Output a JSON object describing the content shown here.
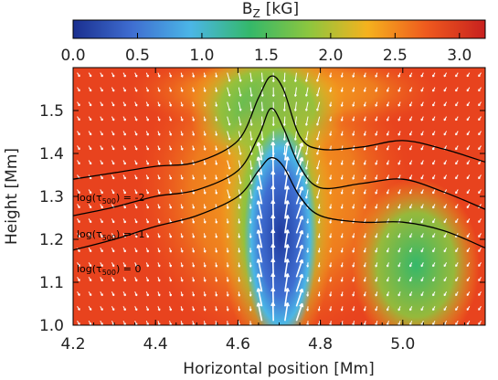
{
  "chart_data": {
    "type": "heatmap",
    "title": "B",
    "title_sub": "Z",
    "title_unit": "[kG]",
    "xlabel": "Horizontal position [Mm]",
    "ylabel": "Height [Mm]",
    "xlim": [
      4.2,
      5.2
    ],
    "ylim": [
      1.0,
      1.6
    ],
    "xticks": [
      4.2,
      4.4,
      4.6,
      4.8,
      5.0
    ],
    "xtick_labels": [
      "4.2",
      "4.4",
      "4.6",
      "4.8",
      "5.0"
    ],
    "yticks": [
      1.0,
      1.1,
      1.2,
      1.3,
      1.4,
      1.5
    ],
    "ytick_labels": [
      "1.0",
      "1.1",
      "1.2",
      "1.3",
      "1.4",
      "1.5"
    ],
    "colorbar": {
      "range": [
        0.0,
        3.2
      ],
      "ticks": [
        0.0,
        0.5,
        1.0,
        1.5,
        2.0,
        2.5,
        3.0
      ],
      "tick_labels": [
        "0.0",
        "0.5",
        "1.0",
        "1.5",
        "2.0",
        "2.5",
        "3.0"
      ],
      "colors": [
        "#1a2f8f",
        "#3f6ed1",
        "#4bb6e6",
        "#34b86a",
        "#8cc63f",
        "#f5b21e",
        "#ef5a1e",
        "#c8211f"
      ]
    },
    "field_features": [
      {
        "name": "low-field flux sheet",
        "x_center": 4.69,
        "y_range": [
          1.0,
          1.39
        ],
        "bz_min": 0.0
      },
      {
        "name": "background",
        "bz": 3.0
      },
      {
        "name": "weak patch",
        "x_center": 5.0,
        "y_center": 1.15,
        "bz": 1.8
      }
    ],
    "contours": [
      {
        "label": "log(τ500) = -2",
        "label_text": "log(τ",
        "label_sub": "500",
        "label_tail": ") = -2",
        "x": [
          4.2,
          4.3,
          4.4,
          4.5,
          4.6,
          4.65,
          4.68,
          4.71,
          4.75,
          4.8,
          4.9,
          5.0,
          5.1,
          5.2
        ],
        "y": [
          1.34,
          1.355,
          1.37,
          1.38,
          1.43,
          1.53,
          1.58,
          1.55,
          1.44,
          1.41,
          1.415,
          1.43,
          1.41,
          1.38
        ]
      },
      {
        "label": "log(τ500) = -1",
        "label_text": "log(τ",
        "label_sub": "500",
        "label_tail": ") = -1",
        "x": [
          4.2,
          4.3,
          4.4,
          4.5,
          4.6,
          4.65,
          4.68,
          4.71,
          4.75,
          4.8,
          4.9,
          5.0,
          5.1,
          5.2
        ],
        "y": [
          1.255,
          1.275,
          1.3,
          1.315,
          1.36,
          1.44,
          1.505,
          1.46,
          1.37,
          1.32,
          1.33,
          1.34,
          1.31,
          1.27
        ]
      },
      {
        "label": "log(τ500) = 0",
        "label_text": "log(τ",
        "label_sub": "500",
        "label_tail": ") = 0",
        "x": [
          4.2,
          4.3,
          4.4,
          4.5,
          4.6,
          4.65,
          4.68,
          4.71,
          4.75,
          4.8,
          4.9,
          5.0,
          5.1,
          5.2
        ],
        "y": [
          1.175,
          1.2,
          1.23,
          1.255,
          1.3,
          1.36,
          1.39,
          1.37,
          1.3,
          1.255,
          1.24,
          1.24,
          1.22,
          1.18
        ]
      }
    ],
    "grid": false,
    "legend": "none"
  }
}
